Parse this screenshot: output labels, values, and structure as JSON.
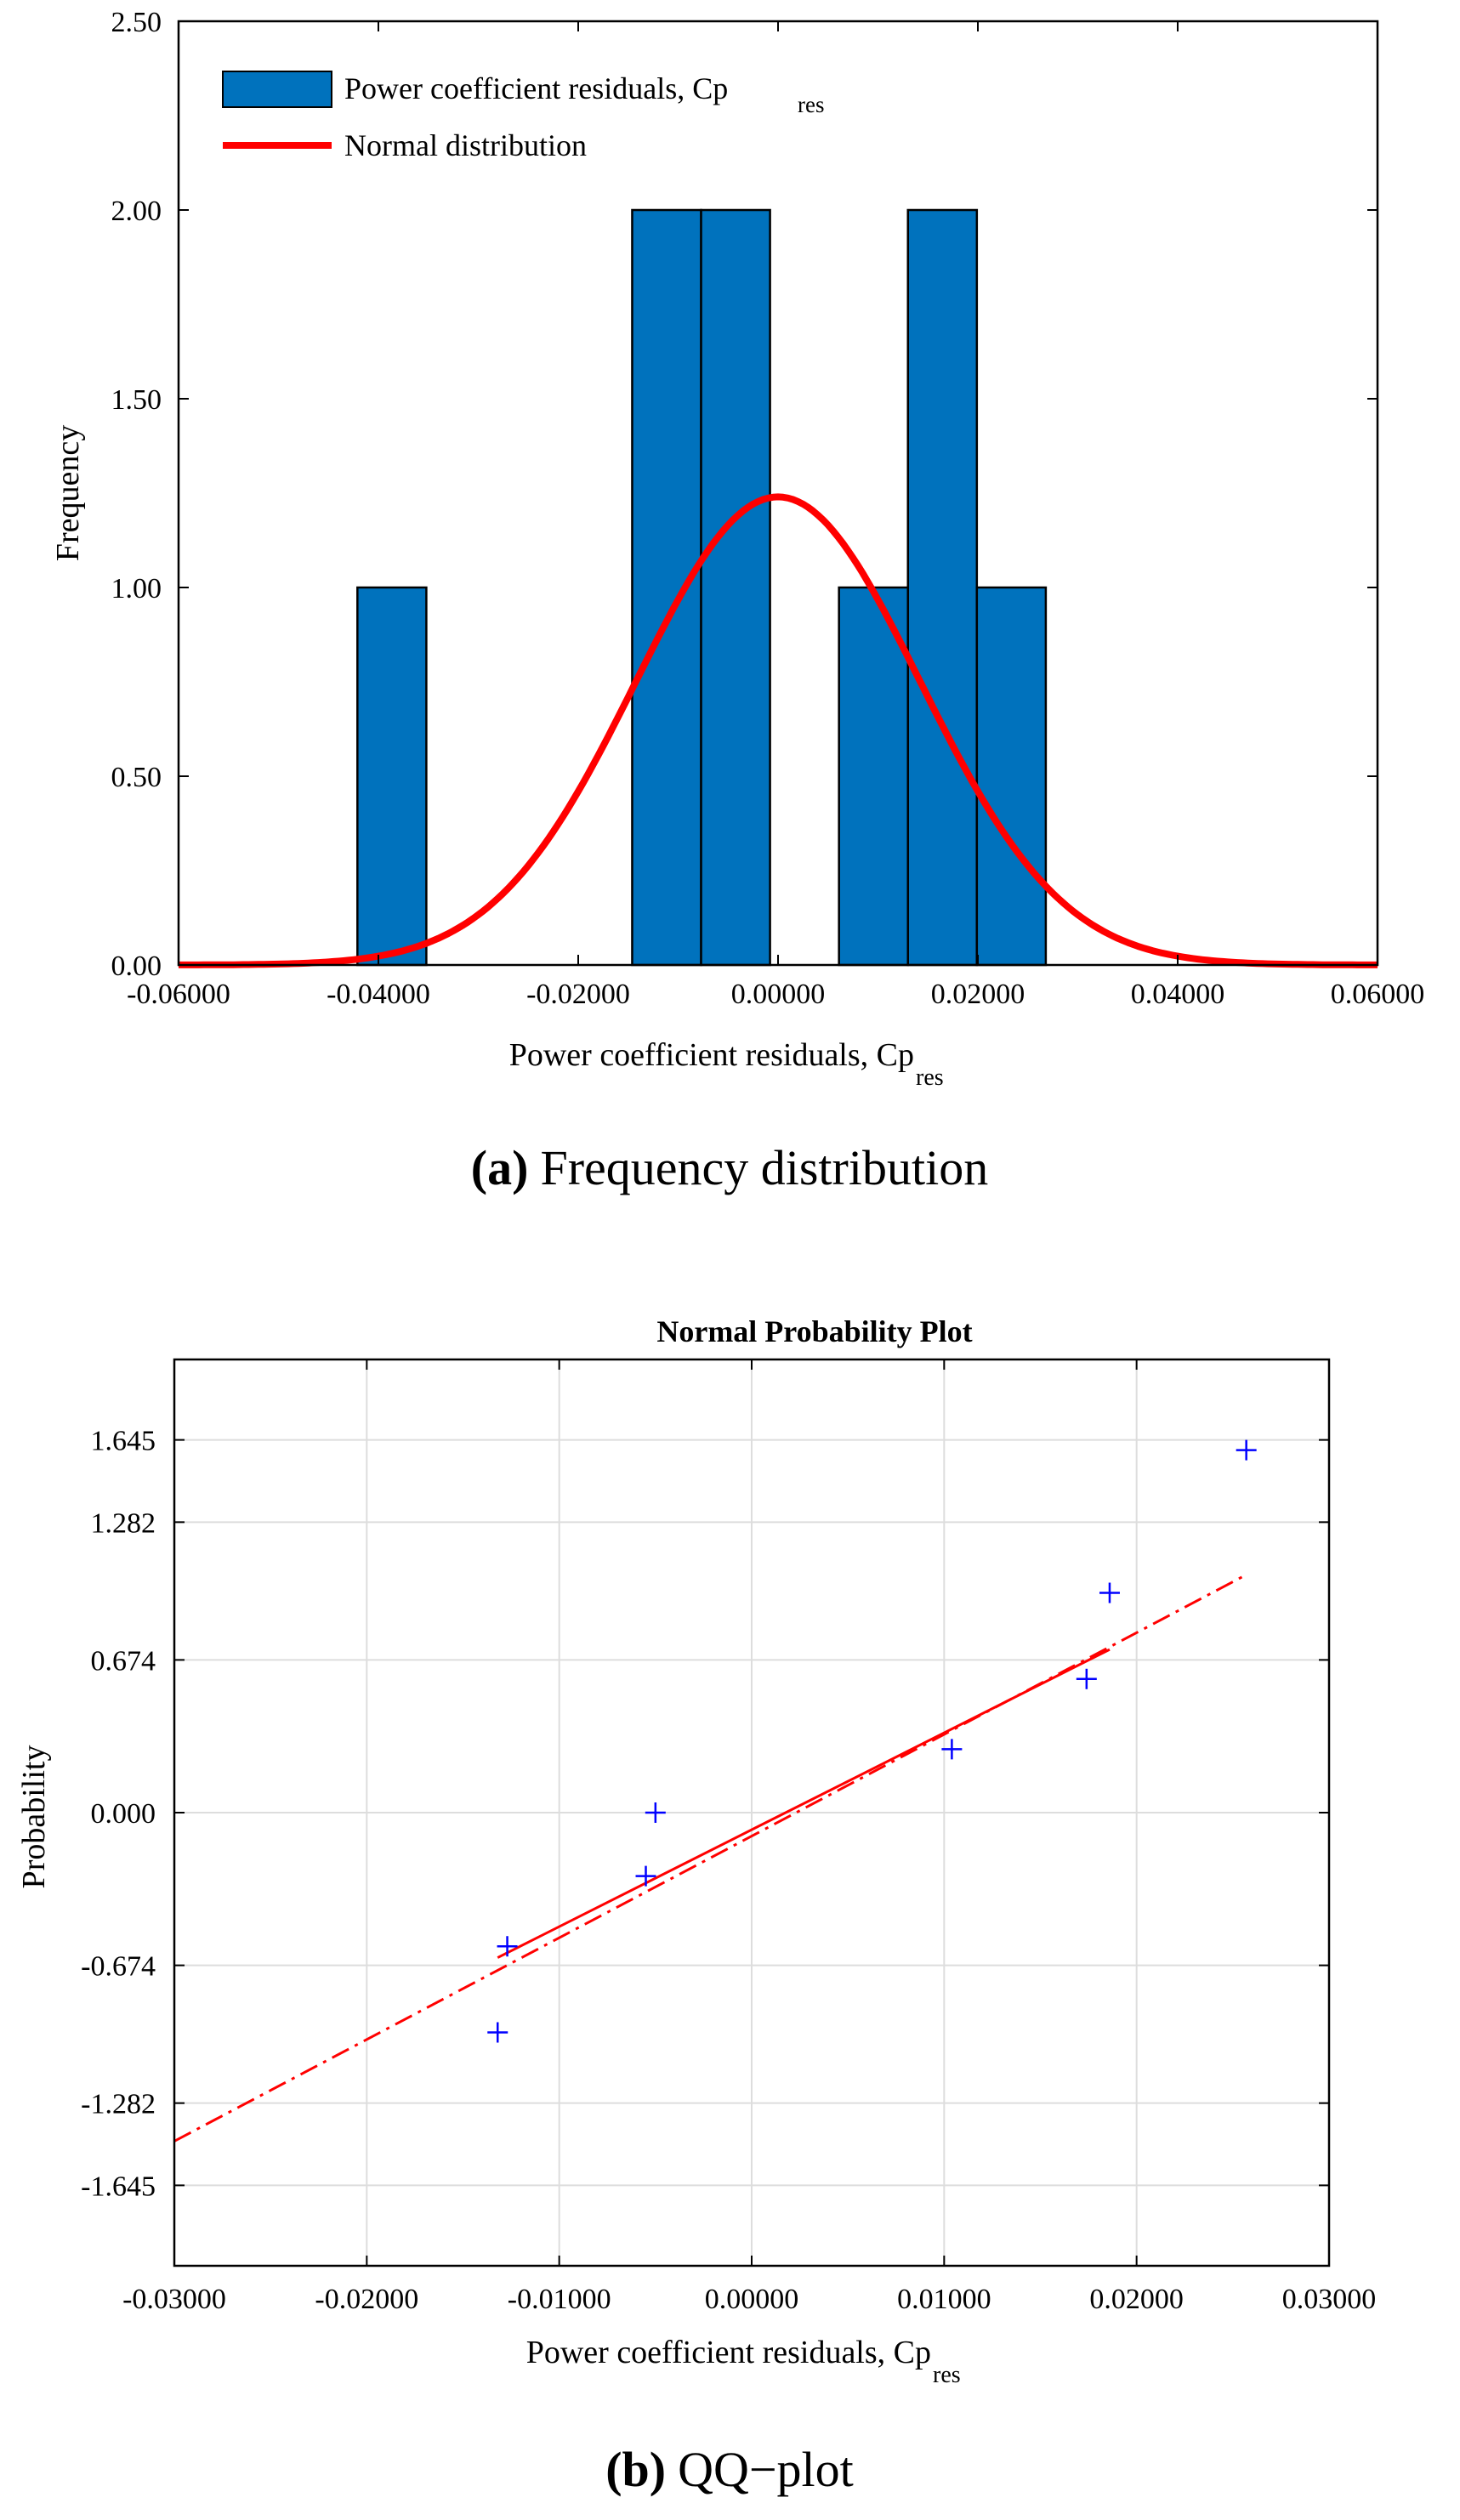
{
  "colors": {
    "bar_fill": "#0072BD",
    "bar_edge": "#000000",
    "normal_curve": "#FF0000",
    "qq_points": "#0000FF",
    "qq_line": "#FF0000",
    "grid": "#DDDDDD"
  },
  "captions": {
    "a_letter": "(a)",
    "a_text": "Frequency distribution",
    "b_letter": "(b)",
    "b_text": "QQ−plot"
  },
  "chart_data": [
    {
      "type": "bar",
      "subtype": "histogram",
      "title": "",
      "xlabel": "Power coefficient residuals,  Cp",
      "xlabel_sub": "res",
      "ylabel": "Frequency",
      "xlim": [
        -0.06,
        0.06
      ],
      "ylim": [
        0,
        2.5
      ],
      "x_ticks": [
        -0.06,
        -0.04,
        -0.02,
        0.0,
        0.02,
        0.04,
        0.06
      ],
      "x_tick_labels": [
        "-0.06000",
        "-0.04000",
        "-0.02000",
        "0.00000",
        "0.02000",
        "0.04000",
        "0.06000"
      ],
      "y_ticks": [
        0,
        0.5,
        1.0,
        1.5,
        2.0,
        2.5
      ],
      "y_tick_labels": [
        "0.00",
        "0.50",
        "1.00",
        "1.50",
        "2.00",
        "2.50"
      ],
      "bins": [
        {
          "x0": -0.0421,
          "x1": -0.0352,
          "count": 1
        },
        {
          "x0": -0.0146,
          "x1": -0.0077,
          "count": 2
        },
        {
          "x0": -0.0077,
          "x1": -0.0008,
          "count": 2
        },
        {
          "x0": 0.0061,
          "x1": 0.013,
          "count": 1
        },
        {
          "x0": 0.013,
          "x1": 0.0199,
          "count": 2
        },
        {
          "x0": 0.0199,
          "x1": 0.0268,
          "count": 1
        }
      ],
      "series": [
        {
          "name": "Power coefficient residuals,  Cp",
          "name_sub": "res",
          "kind": "histogram"
        },
        {
          "name": "Normal distribution",
          "kind": "line",
          "mean": 0.0,
          "peak": 1.24,
          "sigma": 0.0142
        }
      ],
      "legend_position": "top-left",
      "grid": false
    },
    {
      "type": "scatter",
      "subtype": "normal-probability-plot",
      "title": "Normal Probability Plot",
      "xlabel": "Power coefficient residuals,  Cp",
      "xlabel_sub": "res",
      "ylabel": "Probability",
      "xlim": [
        -0.03,
        0.03
      ],
      "ylim": [
        -2.0,
        2.0
      ],
      "x_ticks": [
        -0.03,
        -0.02,
        -0.01,
        0.0,
        0.01,
        0.02,
        0.03
      ],
      "x_tick_labels": [
        "-0.03000",
        "-0.02000",
        "-0.01000",
        "0.00000",
        "0.01000",
        "0.02000",
        "0.03000"
      ],
      "y_ticks": [
        -1.645,
        -1.282,
        -0.674,
        0.0,
        0.674,
        1.282,
        1.645
      ],
      "y_tick_labels": [
        "-1.645",
        "-1.282",
        "-0.674",
        "0.000",
        "0.674",
        "1.282",
        "1.645"
      ],
      "points": [
        {
          "x": -0.0132,
          "y": -0.97
        },
        {
          "x": -0.0127,
          "y": -0.59
        },
        {
          "x": -0.0055,
          "y": -0.28
        },
        {
          "x": -0.005,
          "y": 0.0
        },
        {
          "x": 0.0104,
          "y": 0.28
        },
        {
          "x": 0.0174,
          "y": 0.59
        },
        {
          "x": 0.0186,
          "y": 0.97
        },
        {
          "x": 0.0257,
          "y": 1.6
        }
      ],
      "reference_line": {
        "solid_from": [
          -0.0132,
          -0.64
        ],
        "solid_to": [
          0.0186,
          0.72
        ],
        "dashed_from": [
          -0.03,
          -1.45
        ],
        "dashed_to": [
          0.0257,
          1.05
        ]
      },
      "grid": true
    }
  ]
}
